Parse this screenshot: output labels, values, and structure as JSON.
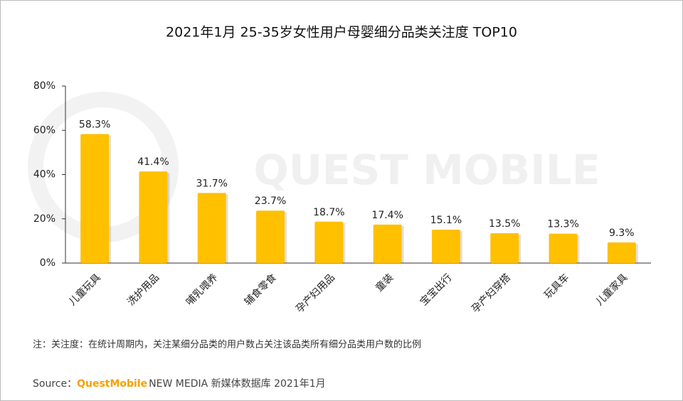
{
  "chart_data": {
    "type": "bar",
    "title": "2021年1月 25-35岁女性用户母婴细分品类关注度 TOP10",
    "categories": [
      "儿童玩具",
      "洗护用品",
      "哺乳喂养",
      "辅食零食",
      "孕产妇用品",
      "童装",
      "宝宝出行",
      "孕产妇穿搭",
      "玩具车",
      "儿童家具"
    ],
    "values": [
      58.3,
      41.4,
      31.7,
      23.7,
      18.7,
      17.4,
      15.1,
      13.5,
      13.3,
      9.3
    ],
    "value_labels": [
      "58.3%",
      "41.4%",
      "31.7%",
      "23.7%",
      "18.7%",
      "17.4%",
      "15.1%",
      "13.5%",
      "13.3%",
      "9.3%"
    ],
    "color": "#ffc000",
    "ylim": [
      0,
      80
    ],
    "yticks": [
      {
        "value": 0,
        "label": "0%"
      },
      {
        "value": 20,
        "label": "20%"
      },
      {
        "value": 40,
        "label": "40%"
      },
      {
        "value": 60,
        "label": "60%"
      },
      {
        "value": 80,
        "label": "80%"
      }
    ],
    "grid": false,
    "watermark": "QUEST MOBILE",
    "note": "注：关注度：在统计周期内，关注某细分品类的用户数占关注该品类所有细分品类用户数的比例",
    "source_label": "Source：",
    "source_brand": "QuestMobile",
    "source_text": "NEW MEDIA 新媒体数据库 2021年1月"
  }
}
